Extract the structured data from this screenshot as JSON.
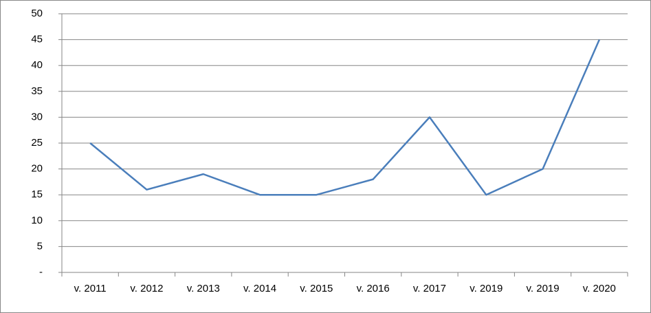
{
  "chart_data": {
    "type": "line",
    "categories": [
      "v. 2011",
      "v. 2012",
      "v. 2013",
      "v. 2014",
      "v. 2015",
      "v. 2016",
      "v. 2017",
      "v. 2019",
      "v. 2019",
      "v. 2020"
    ],
    "values": [
      25,
      16,
      19,
      15,
      15,
      18,
      30,
      15,
      20,
      45
    ],
    "color": "#4a7ebb",
    "ylim": [
      0,
      50
    ],
    "yticks": [
      {
        "value": 0,
        "label": "-"
      },
      5,
      10,
      15,
      20,
      25,
      30,
      35,
      40,
      45,
      50
    ],
    "grid": true
  }
}
